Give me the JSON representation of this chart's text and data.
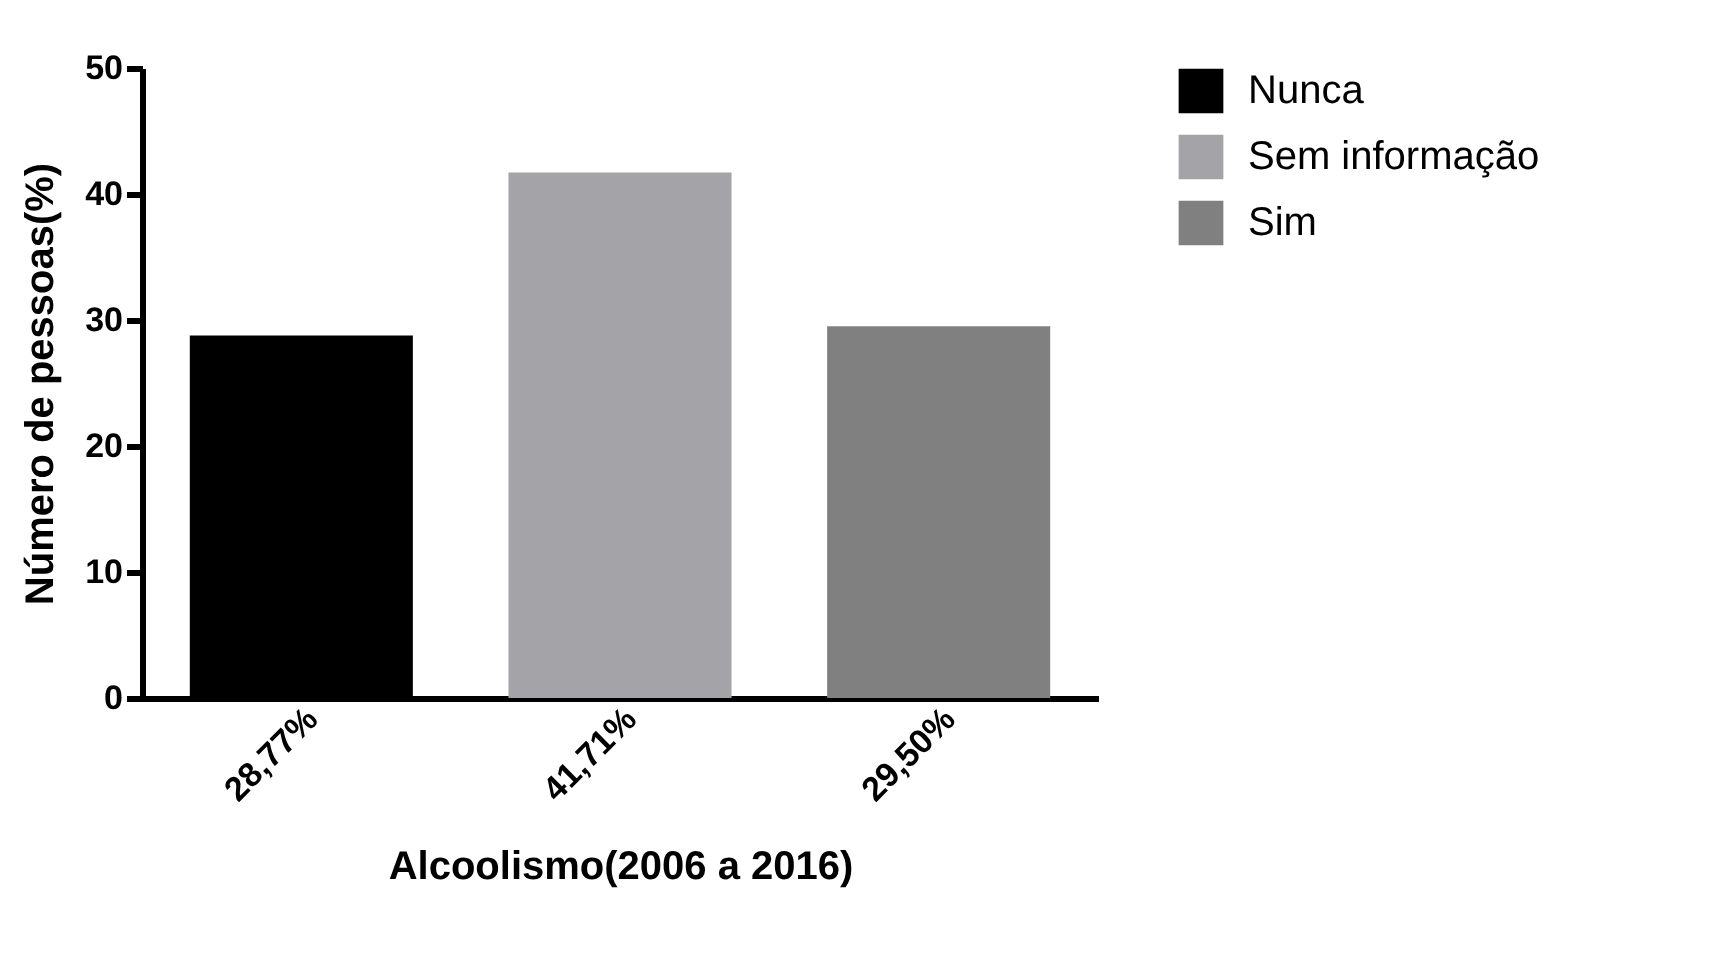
{
  "chart_data": {
    "type": "bar",
    "xlabel": "Alcoolismo(2006 a 2016)",
    "ylabel": "Número de pessoas(%)",
    "categories": [
      "28,77%",
      "41,71%",
      "29,50%"
    ],
    "series": [
      {
        "name": "Nunca",
        "color": "#000000",
        "values": [
          28.77,
          null,
          null
        ]
      },
      {
        "name": "Sem informação",
        "color": "#a4a4a8",
        "values": [
          null,
          41.71,
          null
        ]
      },
      {
        "name": "Sim",
        "color": "#808080",
        "values": [
          null,
          null,
          29.5
        ]
      }
    ],
    "ylim": [
      0,
      50
    ],
    "yticks": [
      0,
      10,
      20,
      30,
      40,
      50
    ],
    "grid": false,
    "legend": "top right"
  }
}
